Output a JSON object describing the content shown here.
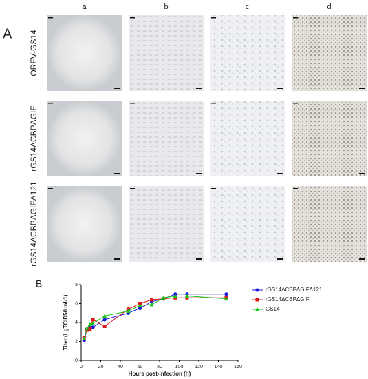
{
  "figure": {
    "panel_a": "A",
    "panel_b": "B",
    "columns": [
      "a",
      "b",
      "c",
      "d"
    ],
    "rows": [
      "ORFV-GS14",
      "rGS14ΔCBPΔGIF",
      "rGS14ΔCBPΔGIFΔ121"
    ]
  },
  "chart_data": {
    "type": "line",
    "x_label": "Hours post-infection (h)",
    "y_label": "Titer (LgTCID50 ml-1)",
    "x": [
      3,
      6,
      9,
      12,
      24,
      48,
      60,
      72,
      84,
      96,
      108,
      148
    ],
    "series": [
      {
        "name": "rGS14ΔCBPΔGIFΔ121",
        "color": "#1a1adf",
        "marker": "circle",
        "values": [
          2.1,
          3.3,
          3.6,
          3.5,
          4.3,
          5.0,
          5.5,
          6.2,
          6.5,
          7.0,
          7.0,
          7.0
        ]
      },
      {
        "name": "rGS14ΔCBPΔGIF",
        "color": "#e01515",
        "marker": "square",
        "values": [
          2.4,
          3.2,
          3.3,
          4.3,
          3.6,
          5.4,
          6.0,
          6.4,
          6.5,
          6.6,
          6.6,
          6.6
        ]
      },
      {
        "name": "GS14",
        "color": "#15c415",
        "marker": "triangle",
        "values": [
          2.3,
          3.4,
          3.8,
          3.9,
          4.7,
          5.2,
          5.8,
          5.9,
          6.6,
          6.8,
          6.8,
          6.5
        ]
      }
    ],
    "xlim": [
      0,
      160
    ],
    "xticks": [
      0,
      20,
      40,
      60,
      80,
      100,
      120,
      140,
      160
    ],
    "ylim": [
      0,
      8
    ],
    "yticks": [
      0,
      2,
      4,
      6,
      8
    ],
    "grid": false
  }
}
